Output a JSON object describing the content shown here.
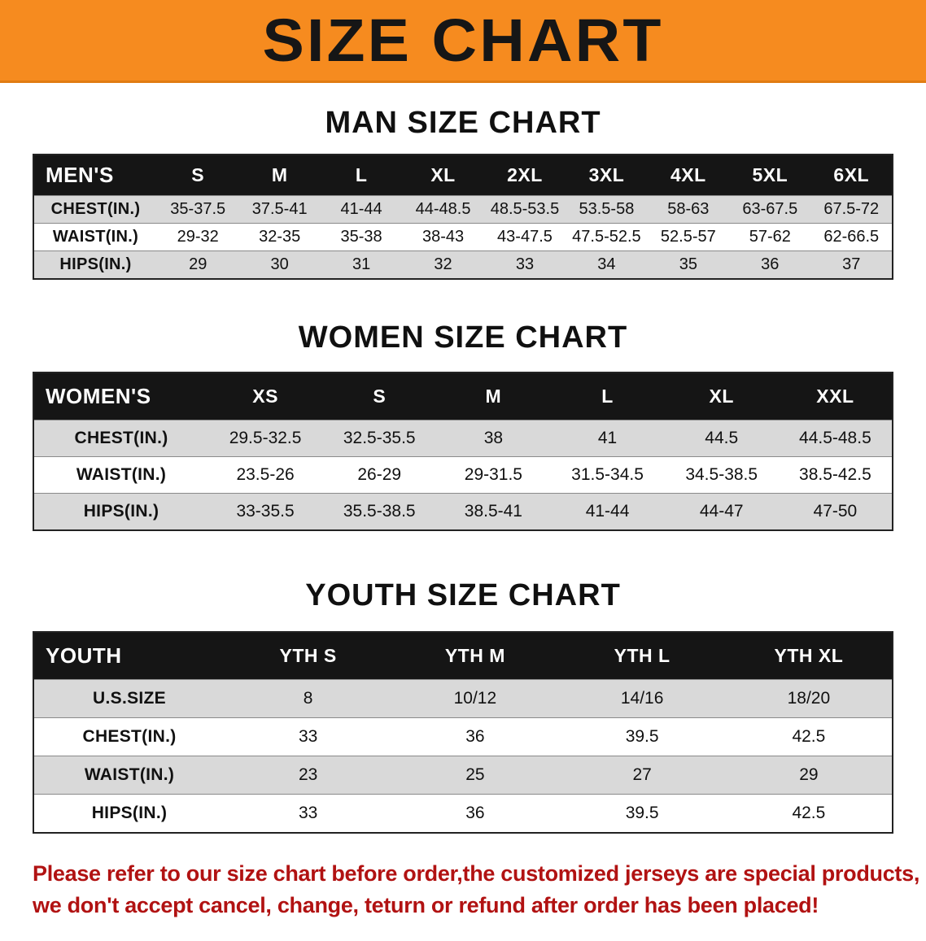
{
  "banner": {
    "title": "SIZE CHART"
  },
  "colors": {
    "banner_orange": "#f68b1f",
    "header_black": "#151515",
    "row_gray": "#d9d9d9",
    "notice_red": "#b11212"
  },
  "chart_data": [
    {
      "type": "table",
      "title": "MAN SIZE CHART",
      "columns": [
        "MEN'S",
        "S",
        "M",
        "L",
        "XL",
        "2XL",
        "3XL",
        "4XL",
        "5XL",
        "6XL"
      ],
      "rows": [
        [
          "CHEST(IN.)",
          "35-37.5",
          "37.5-41",
          "41-44",
          "44-48.5",
          "48.5-53.5",
          "53.5-58",
          "58-63",
          "63-67.5",
          "67.5-72"
        ],
        [
          "WAIST(IN.)",
          "29-32",
          "32-35",
          "35-38",
          "38-43",
          "43-47.5",
          "47.5-52.5",
          "52.5-57",
          "57-62",
          "62-66.5"
        ],
        [
          "HIPS(IN.)",
          "29",
          "30",
          "31",
          "32",
          "33",
          "34",
          "35",
          "36",
          "37"
        ]
      ]
    },
    {
      "type": "table",
      "title": "WOMEN SIZE CHART",
      "columns": [
        "WOMEN'S",
        "XS",
        "S",
        "M",
        "L",
        "XL",
        "XXL"
      ],
      "rows": [
        [
          "CHEST(IN.)",
          "29.5-32.5",
          "32.5-35.5",
          "38",
          "41",
          "44.5",
          "44.5-48.5"
        ],
        [
          "WAIST(IN.)",
          "23.5-26",
          "26-29",
          "29-31.5",
          "31.5-34.5",
          "34.5-38.5",
          "38.5-42.5"
        ],
        [
          "HIPS(IN.)",
          "33-35.5",
          "35.5-38.5",
          "38.5-41",
          "41-44",
          "44-47",
          "47-50"
        ]
      ]
    },
    {
      "type": "table",
      "title": "YOUTH SIZE CHART",
      "columns": [
        "YOUTH",
        "YTH S",
        "YTH M",
        "YTH L",
        "YTH XL"
      ],
      "rows": [
        [
          "U.S.SIZE",
          "8",
          "10/12",
          "14/16",
          "18/20"
        ],
        [
          "CHEST(IN.)",
          "33",
          "36",
          "39.5",
          "42.5"
        ],
        [
          "WAIST(IN.)",
          "23",
          "25",
          "27",
          "29"
        ],
        [
          "HIPS(IN.)",
          "33",
          "36",
          "39.5",
          "42.5"
        ]
      ]
    }
  ],
  "footer": {
    "line1": "Please refer to our size chart before order,the customized jerseys are special products,",
    "line2": "we don't accept cancel, change, teturn or refund after order has been placed!"
  }
}
